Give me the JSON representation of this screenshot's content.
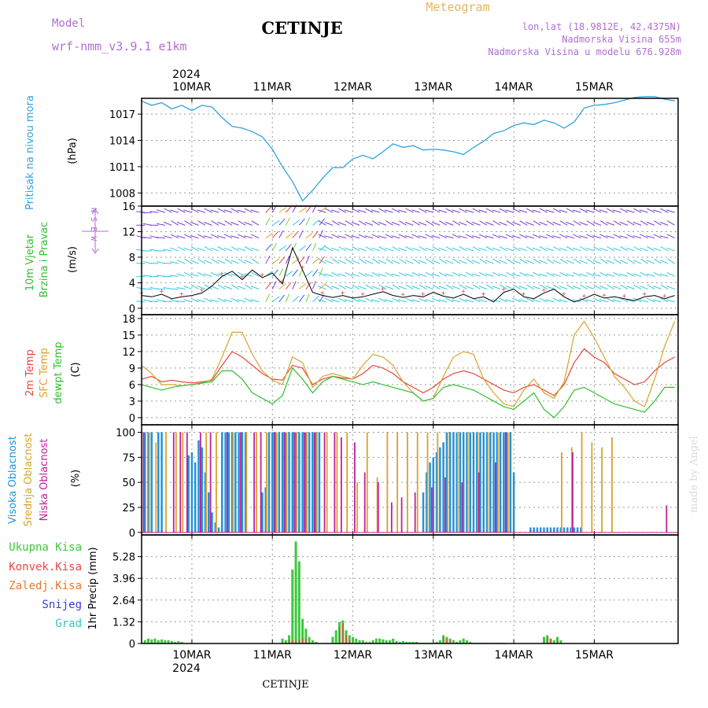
{
  "header": {
    "model_label": "Model",
    "model_name": "wrf-nmm_v3.9.1 e1km",
    "station": "CETINJE",
    "product": "Meteogram",
    "lonlat": "lon,lat (18.9812E, 42.4375N)",
    "elevation": "Nadmorska Visina 655m",
    "model_elevation": "Nadmorska Visina u modelu 676.928m",
    "credit": "made by Angel",
    "footer_station": "CETINJE"
  },
  "colors": {
    "pressure": "#2ea3e0",
    "t2m": "#e8453c",
    "sfc": "#d9a22e",
    "dewpt": "#2fc02f",
    "high_cloud": "#2492d8",
    "mid_cloud": "#d9a22e",
    "low_cloud": "#c0209a",
    "total_precip": "#3cc83c",
    "conv_precip": "#e84646",
    "grid_precip": "#e8782e",
    "snow": "#3c3cd8",
    "graupel": "#2ec8c8"
  },
  "time_axis": {
    "year": "2024",
    "days": [
      "10MAR",
      "11MAR",
      "12MAR",
      "13MAR",
      "14MAR",
      "15MAR"
    ],
    "start_hour": -15,
    "end_hour": 145
  },
  "chart_data": [
    {
      "type": "line",
      "panel": "pressure",
      "ylabel": [
        "Pritisak na nivou mora",
        "(hPa)"
      ],
      "yticks": [
        1008,
        1011,
        1014,
        1017
      ],
      "ylim": [
        1006.5,
        1018.8
      ],
      "series": [
        {
          "name": "Pritisak na nivou mora",
          "x": [
            -15,
            -12,
            -9,
            -6,
            -3,
            0,
            3,
            6,
            9,
            12,
            15,
            18,
            21,
            24,
            27,
            30,
            33,
            36,
            39,
            42,
            45,
            48,
            51,
            54,
            57,
            60,
            63,
            66,
            69,
            72,
            75,
            78,
            81,
            84,
            87,
            90,
            93,
            96,
            99,
            102,
            105,
            108,
            111,
            114,
            117,
            120,
            123,
            126,
            129,
            132,
            135,
            138,
            141,
            144
          ],
          "values": [
            1018.5,
            1018.0,
            1018.3,
            1017.6,
            1018.0,
            1017.4,
            1018.0,
            1017.8,
            1016.6,
            1015.6,
            1015.4,
            1015.0,
            1014.4,
            1013.0,
            1011.0,
            1009.3,
            1007.1,
            1008.3,
            1009.7,
            1010.9,
            1010.9,
            1011.9,
            1012.3,
            1011.9,
            1012.7,
            1013.6,
            1013.2,
            1013.4,
            1012.9,
            1013.0,
            1012.9,
            1012.7,
            1012.4,
            1013.2,
            1013.9,
            1014.8,
            1015.1,
            1015.7,
            1016.0,
            1015.8,
            1016.3,
            1016.0,
            1015.4,
            1016.1,
            1017.7,
            1018.0,
            1018.1,
            1018.3,
            1018.6,
            1018.9,
            1019.0,
            1019.0,
            1018.7,
            1018.5
          ]
        }
      ]
    },
    {
      "type": "line",
      "panel": "wind",
      "ylabel": [
        "10m Vjetar",
        "Brzina i Pravac",
        "(m/s)"
      ],
      "compass": "N S E W",
      "yticks": [
        0,
        4,
        8,
        12,
        16
      ],
      "ylim": [
        -1,
        16
      ],
      "series": [
        {
          "name": "Brzina",
          "x": [
            -15,
            -12,
            -9,
            -6,
            -3,
            0,
            3,
            6,
            9,
            12,
            15,
            18,
            21,
            24,
            27,
            30,
            33,
            36,
            39,
            42,
            45,
            48,
            51,
            54,
            57,
            60,
            63,
            66,
            69,
            72,
            75,
            78,
            81,
            84,
            87,
            90,
            93,
            96,
            99,
            102,
            105,
            108,
            111,
            114,
            117,
            120,
            123,
            126,
            129,
            132,
            135,
            138,
            141,
            144
          ],
          "values": [
            2.0,
            1.8,
            2.2,
            1.5,
            1.8,
            2.0,
            2.4,
            3.5,
            5.0,
            5.8,
            4.5,
            6.0,
            4.8,
            5.5,
            3.8,
            9.5,
            6.0,
            2.5,
            2.0,
            1.7,
            2.0,
            1.6,
            1.8,
            2.2,
            2.6,
            2.0,
            1.7,
            2.0,
            1.8,
            2.5,
            1.9,
            1.6,
            2.2,
            1.5,
            1.8,
            1.0,
            2.5,
            3.0,
            1.8,
            1.5,
            2.4,
            3.0,
            1.8,
            1.0,
            1.5,
            2.2,
            1.6,
            1.8,
            1.5,
            1.2,
            1.8,
            2.0,
            1.5,
            2.0
          ]
        }
      ]
    },
    {
      "type": "line",
      "panel": "temperature",
      "ylabel": [
        "2m Temp",
        "SFC Temp",
        "dewpt Temp",
        "(C)"
      ],
      "yticks": [
        0,
        3,
        6,
        9,
        12,
        15,
        18
      ],
      "ylim": [
        -1.3,
        18.7
      ],
      "x": [
        -15,
        -12,
        -9,
        -6,
        -3,
        0,
        3,
        6,
        9,
        12,
        15,
        18,
        21,
        24,
        27,
        30,
        33,
        36,
        39,
        42,
        45,
        48,
        51,
        54,
        57,
        60,
        63,
        66,
        69,
        72,
        75,
        78,
        81,
        84,
        87,
        90,
        93,
        96,
        99,
        102,
        105,
        108,
        111,
        114,
        117,
        120,
        123,
        126,
        129,
        132,
        135,
        138,
        141,
        144
      ],
      "series": [
        {
          "name": "2m Temp",
          "values": [
            7.0,
            7.5,
            6.5,
            6.8,
            6.5,
            6.3,
            6.5,
            6.8,
            9.5,
            12.0,
            11.0,
            9.5,
            8.0,
            7.0,
            6.8,
            9.5,
            9.0,
            6.0,
            7.0,
            7.5,
            7.2,
            7.0,
            8.0,
            9.5,
            9.0,
            8.0,
            6.5,
            5.5,
            4.5,
            5.5,
            7.0,
            8.0,
            8.5,
            8.0,
            7.0,
            6.0,
            5.0,
            4.5,
            5.5,
            6.0,
            5.0,
            4.0,
            6.0,
            10.0,
            12.5,
            11.0,
            10.0,
            8.0,
            7.0,
            6.0,
            6.5,
            8.5,
            10.0,
            11.0
          ]
        },
        {
          "name": "SFC Temp",
          "values": [
            9.5,
            8.0,
            6.0,
            6.0,
            5.8,
            6.0,
            6.2,
            7.0,
            11.0,
            15.5,
            15.5,
            11.5,
            8.5,
            6.8,
            6.0,
            11.0,
            10.0,
            5.5,
            7.5,
            8.0,
            7.5,
            7.0,
            9.5,
            11.5,
            11.0,
            9.5,
            6.5,
            4.5,
            3.0,
            3.5,
            7.5,
            11.0,
            12.0,
            11.5,
            7.0,
            4.5,
            2.5,
            2.0,
            5.0,
            7.0,
            4.5,
            3.5,
            6.5,
            15.0,
            17.5,
            14.5,
            11.0,
            7.5,
            5.5,
            3.0,
            2.0,
            7.0,
            13.0,
            17.5
          ]
        },
        {
          "name": "dewpt Temp",
          "values": [
            6.0,
            5.5,
            5.0,
            5.5,
            5.8,
            6.0,
            6.3,
            6.5,
            8.5,
            8.5,
            7.0,
            4.5,
            3.5,
            2.5,
            4.0,
            9.0,
            7.0,
            4.5,
            6.5,
            7.5,
            7.0,
            6.5,
            6.0,
            6.5,
            6.0,
            5.5,
            5.0,
            4.5,
            3.0,
            3.5,
            5.5,
            6.0,
            5.5,
            5.0,
            4.0,
            3.0,
            2.0,
            1.5,
            3.0,
            4.5,
            1.5,
            0.0,
            2.0,
            5.0,
            5.5,
            4.5,
            3.5,
            2.5,
            2.0,
            1.5,
            1.0,
            3.0,
            5.5,
            5.5
          ]
        }
      ]
    },
    {
      "type": "bar",
      "panel": "cloud",
      "ylabel": [
        "Visoka Oblacnost",
        "Srednja Oblacnost",
        "Niska Oblacnost",
        "(%)"
      ],
      "yticks": [
        0,
        25,
        50,
        75,
        100
      ],
      "ylim": [
        -2.5,
        107.5
      ],
      "series": [
        {
          "name": "Visoka Oblacnost",
          "x": [
            -14,
            -13,
            -12,
            -10,
            -9,
            -1,
            0,
            1,
            2,
            3,
            4,
            5,
            6,
            7,
            8,
            9,
            10,
            11,
            12,
            13,
            14,
            15,
            16,
            21,
            22,
            23,
            24,
            25,
            26,
            27,
            28,
            29,
            30,
            31,
            32,
            33,
            34,
            35,
            36,
            37,
            38,
            69,
            70,
            71,
            72,
            73,
            74,
            75,
            76,
            77,
            78,
            79,
            80,
            81,
            82,
            83,
            84,
            85,
            86,
            87,
            88,
            89,
            90,
            91,
            92,
            93,
            94,
            95,
            96,
            101,
            102,
            103,
            104,
            105,
            106,
            107,
            108,
            109,
            110,
            111,
            112,
            113,
            114,
            115,
            116
          ],
          "values": [
            100,
            100,
            100,
            100,
            100,
            77,
            80,
            70,
            92,
            85,
            60,
            40,
            20,
            10,
            5,
            100,
            100,
            100,
            100,
            100,
            100,
            100,
            100,
            40,
            45,
            100,
            100,
            100,
            100,
            100,
            100,
            100,
            100,
            100,
            100,
            100,
            100,
            100,
            100,
            100,
            100,
            40,
            60,
            70,
            75,
            80,
            85,
            90,
            100,
            100,
            100,
            100,
            100,
            100,
            100,
            100,
            100,
            100,
            100,
            100,
            100,
            100,
            100,
            100,
            100,
            100,
            100,
            100,
            60,
            5,
            5,
            5,
            5,
            5,
            5,
            5,
            5,
            5,
            5,
            5,
            5,
            5,
            5,
            5,
            5
          ]
        },
        {
          "name": "Srednja Oblacnost",
          "x": [
            -13,
            -11,
            -8,
            -5,
            -3,
            4,
            7,
            12,
            16,
            19,
            22,
            25,
            28,
            31,
            34,
            37,
            40,
            43,
            46,
            49,
            52,
            55,
            58,
            61,
            64,
            67,
            70,
            73,
            76,
            79,
            82,
            85,
            88,
            91,
            94,
            110,
            113,
            116,
            119,
            122,
            125,
            128
          ],
          "values": [
            100,
            90,
            100,
            100,
            100,
            100,
            100,
            100,
            100,
            100,
            100,
            100,
            100,
            100,
            100,
            100,
            100,
            100,
            100,
            50,
            100,
            55,
            100,
            100,
            100,
            100,
            100,
            100,
            100,
            100,
            100,
            100,
            100,
            100,
            100,
            80,
            85,
            100,
            90,
            85,
            95,
            0
          ]
        },
        {
          "name": "Niska Oblacnost",
          "x": [
            -15,
            -6,
            -4,
            -2,
            2,
            5,
            10,
            14,
            18,
            20,
            24,
            27,
            30,
            33,
            36,
            39,
            42,
            44,
            48,
            51,
            55,
            59,
            62,
            66,
            71,
            75,
            80,
            85,
            90,
            93,
            113,
            141
          ],
          "values": [
            100,
            100,
            100,
            100,
            100,
            100,
            100,
            100,
            100,
            100,
            100,
            100,
            100,
            100,
            100,
            100,
            100,
            95,
            90,
            60,
            50,
            30,
            35,
            40,
            45,
            55,
            50,
            60,
            70,
            100,
            80,
            27
          ]
        }
      ]
    },
    {
      "type": "bar",
      "panel": "precip",
      "ylabel": [
        "1hr Precip (mm)"
      ],
      "legend": [
        "Ukupna Kisa",
        "Konvek.Kisa",
        "Zaledj.Kisa",
        "Snijeg",
        "Grad"
      ],
      "yticks": [
        0,
        1.32,
        2.64,
        3.96,
        5.28
      ],
      "ylim": [
        0,
        6.6
      ],
      "series": [
        {
          "name": "Ukupna Kisa",
          "x": [
            -14,
            -13,
            -12,
            -11,
            -10,
            -9,
            -8,
            -7,
            -6,
            -5,
            -4,
            -3,
            27,
            28,
            29,
            30,
            31,
            32,
            33,
            34,
            35,
            36,
            37,
            42,
            43,
            44,
            45,
            46,
            47,
            48,
            49,
            50,
            51,
            52,
            53,
            54,
            55,
            56,
            57,
            58,
            59,
            60,
            61,
            62,
            63,
            64,
            65,
            66,
            67,
            68,
            69,
            70,
            71,
            72,
            73,
            74,
            75,
            76,
            77,
            78,
            79,
            80,
            81,
            82,
            83,
            84,
            85,
            86,
            87,
            88,
            89,
            90,
            91,
            92,
            93,
            105,
            106,
            107,
            108,
            109,
            110
          ],
          "values": [
            0.2,
            0.3,
            0.25,
            0.3,
            0.2,
            0.25,
            0.2,
            0.2,
            0.15,
            0.1,
            0.15,
            0.1,
            0.3,
            0.2,
            0.5,
            4.5,
            6.2,
            5.0,
            1.5,
            0.9,
            0.4,
            0.2,
            0.1,
            0.4,
            0.8,
            1.3,
            1.4,
            0.8,
            0.5,
            0.4,
            0.3,
            0.2,
            0.2,
            0.1,
            0.1,
            0.2,
            0.3,
            0.3,
            0.25,
            0.2,
            0.2,
            0.3,
            0.15,
            0.1,
            0.15,
            0.1,
            0.1,
            0.1,
            0.1,
            0.05,
            0.05,
            0.05,
            0.05,
            0.05,
            0.1,
            0.2,
            0.5,
            0.4,
            0.3,
            0.2,
            0.1,
            0.2,
            0.3,
            0.2,
            0.1,
            0.05,
            0.05,
            0.05,
            0.05,
            0.05,
            0.05,
            0.05,
            0.05,
            0.05,
            0.05,
            0.4,
            0.5,
            0.3,
            0.2,
            0.4,
            0.2
          ]
        },
        {
          "name": "Konvek.Kisa",
          "x": [
            29,
            30,
            31,
            32,
            33,
            34,
            44,
            45,
            46,
            47,
            75,
            76,
            77,
            106,
            107,
            109
          ],
          "values": [
            0.2,
            0.2,
            0.2,
            0.2,
            0.3,
            0.3,
            1.0,
            1.2,
            0.5,
            0.2,
            0.4,
            0.3,
            0.2,
            0.4,
            0.3,
            0.2
          ]
        }
      ]
    }
  ]
}
